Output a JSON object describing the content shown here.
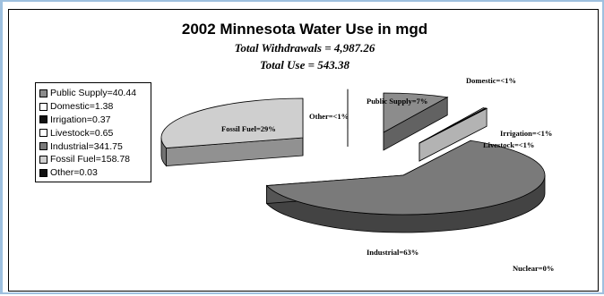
{
  "chart_data": {
    "type": "pie",
    "title": "2002 Minnesota Water Use in mgd",
    "subtitle_lines": [
      "Total Withdrawals = 4,987.26",
      "Total Use = 543.38"
    ],
    "legend": [
      {
        "label": "Public Supply=40.44",
        "color": "#8c8c8c"
      },
      {
        "label": "Domestic=1.38",
        "color": "#ffffff"
      },
      {
        "label": "Irrigation=0.37",
        "color": "#111111"
      },
      {
        "label": "Livestock=0.65",
        "color": "#ffffff"
      },
      {
        "label": "Industrial=341.75",
        "color": "#7a7a7a"
      },
      {
        "label": "Fossil Fuel=158.78",
        "color": "#cfcfcf"
      },
      {
        "label": "Other=0.03",
        "color": "#111111"
      }
    ],
    "slices": [
      {
        "name": "Public Supply",
        "value": 40.44,
        "label": "Public Supply=7%",
        "color": "#8c8c8c"
      },
      {
        "name": "Domestic",
        "value": 1.38,
        "label": "Domestic=<1%",
        "color": "#ffffff"
      },
      {
        "name": "Irrigation",
        "value": 0.37,
        "label": "Irrigation=<1%",
        "color": "#111111"
      },
      {
        "name": "Livestock",
        "value": 0.65,
        "label": "Livestock=<1%",
        "color": "#ffffff"
      },
      {
        "name": "Industrial",
        "value": 341.75,
        "label": "Industrial=63%",
        "color": "#7a7a7a"
      },
      {
        "name": "Fossil Fuel",
        "value": 158.78,
        "label": "Fossil Fuel=29%",
        "color": "#cfcfcf"
      },
      {
        "name": "Other",
        "value": 0.03,
        "label": "Other=<1%",
        "color": "#111111"
      },
      {
        "name": "Nuclear",
        "value": 0,
        "label": "Nuclear=0%",
        "color": "#ffffff"
      }
    ]
  }
}
